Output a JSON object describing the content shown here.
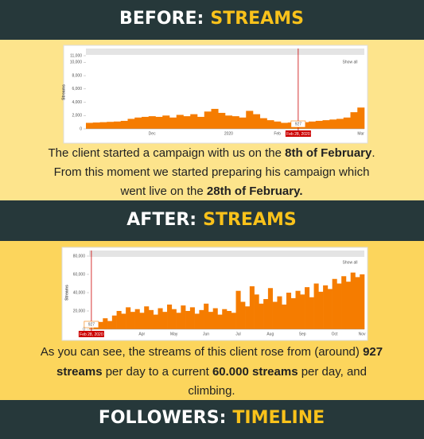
{
  "sections": [
    {
      "label": "BEFORE:",
      "highlight": "STREAMS"
    },
    {
      "label": "AFTER:",
      "highlight": "STREAMS"
    },
    {
      "label": "FOLLOWERS:",
      "highlight": "TIMELINE"
    }
  ],
  "paragraphs": [
    [
      [
        "The client started a campaign with us on the ",
        {
          "text": "8th of February",
          "bold": true
        },
        "."
      ],
      [
        "From this moment we started preparing his campaign which"
      ],
      [
        "went live on the ",
        {
          "text": "28th of February.",
          "bold": true
        }
      ]
    ],
    [
      [
        "As you can see, the streams of this client rose from (around) ",
        {
          "text": "927",
          "bold": true
        }
      ],
      [
        {
          "text": "streams",
          "bold": true
        },
        " per day to a current ",
        {
          "text": "60.000 streams",
          "bold": true
        },
        " per day, and"
      ],
      [
        "climbing."
      ]
    ]
  ],
  "chart_data": [
    {
      "type": "bar",
      "y_label": "Streams",
      "color": "#f57c00",
      "show_all": "Show all",
      "marker_label": "Feb 28, 2020",
      "value_annotation": "927",
      "categories": [
        null,
        null,
        null,
        null,
        null,
        null,
        null,
        null,
        null,
        "Dec",
        null,
        null,
        null,
        null,
        null,
        null,
        null,
        null,
        null,
        null,
        "2020",
        null,
        null,
        null,
        null,
        null,
        null,
        "Feb",
        null,
        null,
        null,
        null,
        null,
        null,
        null,
        null,
        null,
        null,
        null,
        "Mar"
      ],
      "values": [
        900,
        950,
        1000,
        1050,
        1100,
        1200,
        1500,
        1700,
        1800,
        1900,
        1800,
        2000,
        1700,
        2100,
        1900,
        2200,
        1800,
        2600,
        3000,
        2400,
        2000,
        1900,
        1700,
        2700,
        2200,
        1600,
        1300,
        1100,
        900,
        950,
        927,
        1000,
        1100,
        1200,
        1300,
        1400,
        1500,
        1700,
        2500,
        3200
      ],
      "ylim": [
        0,
        11000
      ],
      "yticks": [
        0,
        {
          "value": 2000,
          "label": "2,000"
        },
        {
          "value": 4000,
          "label": "4,000"
        },
        {
          "value": 6000,
          "label": "6,000"
        },
        {
          "value": 8000,
          "label": "8,000"
        },
        {
          "value": 10000,
          "label": "10,000"
        },
        {
          "value": 11000,
          "label": "11,000"
        }
      ]
    },
    {
      "type": "bar",
      "y_label": "Streams",
      "color": "#f57c00",
      "show_all": "Show all",
      "marker_label": "Feb 28, 2020",
      "value_annotation": "927",
      "categories": [
        null,
        null,
        null,
        null,
        null,
        null,
        null,
        null,
        null,
        null,
        null,
        "Apr",
        null,
        null,
        null,
        null,
        null,
        null,
        "May",
        null,
        null,
        null,
        null,
        null,
        null,
        "Jun",
        null,
        null,
        null,
        null,
        null,
        null,
        "Jul",
        null,
        null,
        null,
        null,
        null,
        null,
        "Aug",
        null,
        null,
        null,
        null,
        null,
        null,
        "Sep",
        null,
        null,
        null,
        null,
        null,
        null,
        "Oct",
        null,
        null,
        null,
        null,
        null,
        "Nov"
      ],
      "values": [
        927,
        2000,
        8000,
        12000,
        9000,
        15000,
        20000,
        17000,
        24000,
        19000,
        22000,
        18000,
        25000,
        21000,
        16000,
        23000,
        19000,
        27000,
        22000,
        18000,
        26000,
        20000,
        24000,
        17000,
        21000,
        28000,
        19000,
        23000,
        16000,
        22000,
        20000,
        18000,
        42000,
        30000,
        25000,
        47000,
        38000,
        28000,
        33000,
        45000,
        30000,
        36000,
        27000,
        40000,
        34000,
        42000,
        38000,
        46000,
        35000,
        50000,
        41000,
        48000,
        44000,
        55000,
        50000,
        58000,
        52000,
        62000,
        57000,
        60000
      ],
      "ylim": [
        0,
        80000
      ],
      "yticks": [
        0,
        {
          "value": 20000,
          "label": "20,000"
        },
        {
          "value": 40000,
          "label": "40,000"
        },
        {
          "value": 60000,
          "label": "60,000"
        },
        {
          "value": 80000,
          "label": "80,000"
        }
      ]
    }
  ]
}
